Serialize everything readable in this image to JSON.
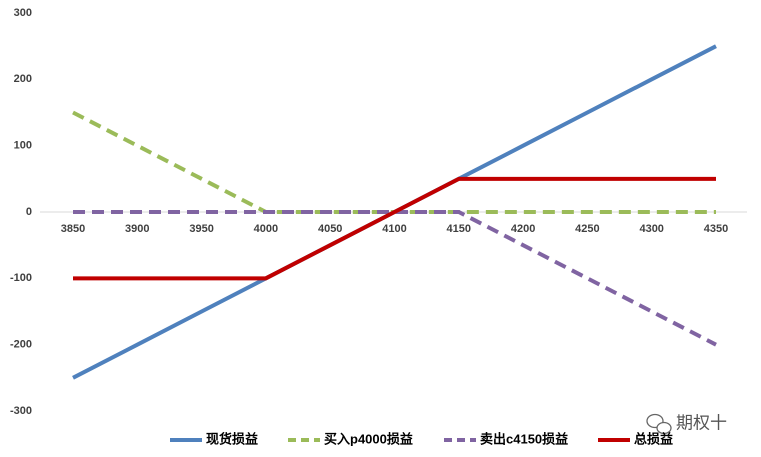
{
  "chart_data": {
    "type": "line",
    "categories": [
      "3850",
      "3900",
      "3950",
      "4000",
      "4050",
      "4100",
      "4150",
      "4200",
      "4250",
      "4300",
      "4350"
    ],
    "series": [
      {
        "name": "现货损益",
        "color": "#4f81bd",
        "dashed": false,
        "values": [
          -250,
          -200,
          -150,
          -100,
          -50,
          0,
          50,
          100,
          150,
          200,
          250
        ]
      },
      {
        "name": "买入p4000损益",
        "color": "#9bbb59",
        "dashed": true,
        "values": [
          150,
          100,
          50,
          0,
          0,
          0,
          0,
          0,
          0,
          0,
          0
        ]
      },
      {
        "name": "卖出c4150损益",
        "color": "#8064a2",
        "dashed": true,
        "values": [
          0,
          0,
          0,
          0,
          0,
          0,
          0,
          -50,
          -100,
          -150,
          -200
        ]
      },
      {
        "name": "总损益",
        "color": "#c00000",
        "dashed": false,
        "values": [
          -100,
          -100,
          -100,
          -100,
          -50,
          0,
          50,
          50,
          50,
          50,
          50
        ]
      }
    ],
    "ylim": [
      -300,
      300
    ],
    "yticks": [
      -300,
      -200,
      -100,
      0,
      100,
      200,
      300
    ],
    "grid": false,
    "legend": "bottom",
    "watermark": "期权十"
  }
}
